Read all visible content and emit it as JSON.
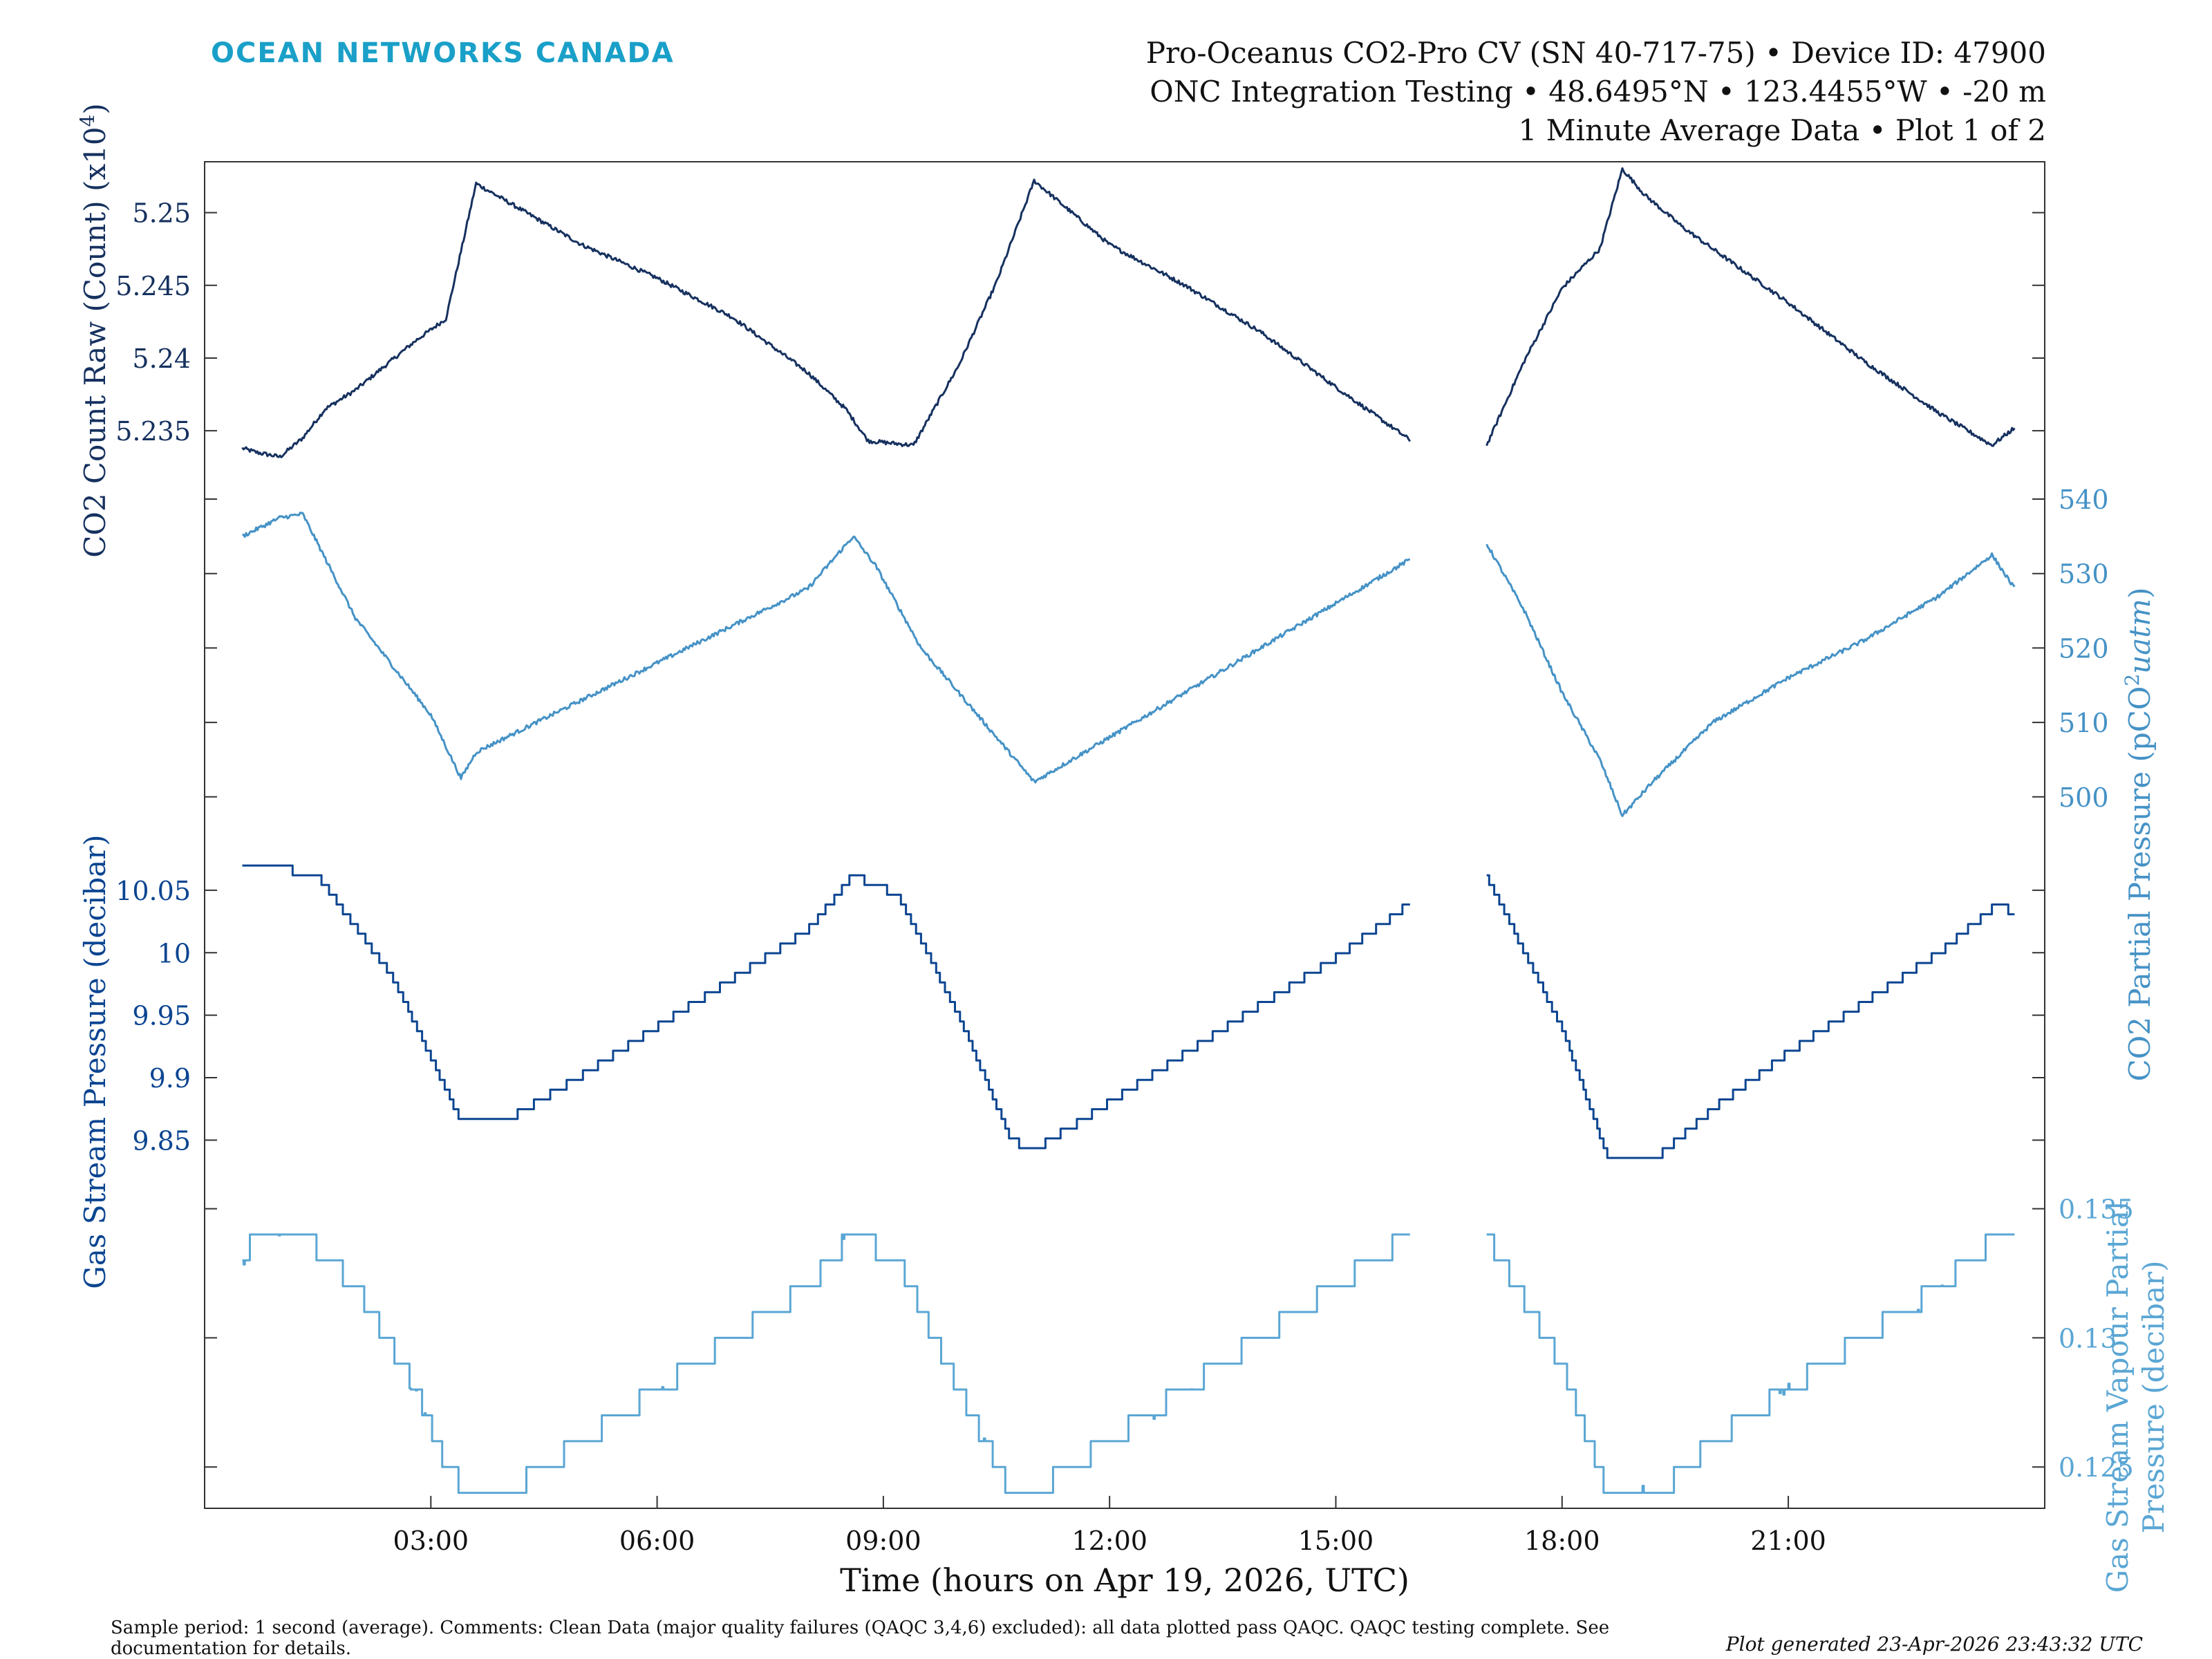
{
  "header": {
    "brand": "OCEAN NETWORKS CANADA",
    "line1": "Pro-Oceanus CO2-Pro CV (SN 40-717-75) • Device ID: 47900",
    "line2": "ONC Integration Testing • 48.6495°N • 123.4455°W • -20 m",
    "line3": "1 Minute Average Data • Plot 1 of 2"
  },
  "footer": {
    "comments": "Sample period: 1 second (average). Comments: Clean Data (major quality failures (QAQC 3,4,6) excluded): all data plotted pass QAQC. QAQC testing complete. See documentation for details.",
    "generated": "Plot generated 23-Apr-2026 23:43:32 UTC"
  },
  "colors": {
    "dark": "#16315f",
    "mid": "#4592c6",
    "navy": "#0b4591",
    "light": "#5aa6d4",
    "axis": "#333333"
  },
  "chart_data": [
    {
      "type": "line",
      "title": "CO2 Count Raw",
      "ylabel": "CO2 Count Raw (Count) (x10^4)",
      "ylabel_main": "CO2 Count Raw (Count) (x10",
      "ylabel_exp": "4",
      "ylabel_tail": ")",
      "axis_side": "left",
      "color": "#16315f",
      "ylim": [
        5.2303,
        5.2535
      ],
      "yticks": [
        5.235,
        5.24,
        5.245,
        5.25
      ],
      "yticklabels": [
        "5.235",
        "5.24",
        "5.245",
        "5.25"
      ],
      "x_hours": [
        0.5,
        0.7,
        1.0,
        1.3,
        1.6,
        2.0,
        2.4,
        2.8,
        3.2,
        3.6,
        4.0,
        5.0,
        6.0,
        7.0,
        8.0,
        8.5,
        8.8,
        9.4,
        10.0,
        10.5,
        11.0,
        11.5,
        12.0,
        13.0,
        14.0,
        15.0,
        16.0,
        16.5,
        17.0,
        17.5,
        18.0,
        18.5,
        18.8,
        19.1,
        19.6,
        20.0,
        21.0,
        22.0,
        23.0,
        23.7,
        24.0
      ],
      "values": [
        5.2338,
        5.2335,
        5.2332,
        5.2345,
        5.2365,
        5.2378,
        5.2395,
        5.2412,
        5.2427,
        5.252,
        5.2508,
        5.2478,
        5.2455,
        5.2428,
        5.239,
        5.2365,
        5.2343,
        5.234,
        5.2395,
        5.2452,
        5.2522,
        5.25,
        5.2478,
        5.245,
        5.2418,
        5.238,
        5.2343,
        null,
        5.234,
        5.2398,
        5.2448,
        5.2475,
        5.253,
        5.2512,
        5.249,
        5.2475,
        5.2438,
        5.2398,
        5.2362,
        5.234,
        5.2352
      ]
    },
    {
      "type": "line",
      "title": "CO2 Partial Pressure",
      "ylabel": "CO2 Partial Pressure (pCO2 uatm)",
      "ylabel_main": "CO2 Partial Pressure (pCO",
      "ylabel_sup": "2",
      "ylabel_unit": "uatm",
      "ylabel_tail": ")",
      "axis_side": "right",
      "color": "#4592c6",
      "ylim": [
        494.5,
        540
      ],
      "yticks": [
        500,
        510,
        520,
        530,
        540
      ],
      "yticklabels": [
        "500",
        "510",
        "520",
        "530",
        "540"
      ],
      "x_hours": [
        0.5,
        1.0,
        1.3,
        2.0,
        3.0,
        3.4,
        3.6,
        4.0,
        5.0,
        6.0,
        7.0,
        8.0,
        8.6,
        8.9,
        9.5,
        10.0,
        10.5,
        11.0,
        11.5,
        12.0,
        13.0,
        14.0,
        15.0,
        16.0,
        16.5,
        17.0,
        17.5,
        18.0,
        18.5,
        18.8,
        19.2,
        20.0,
        21.0,
        22.0,
        23.0,
        23.7,
        24.0
      ],
      "values": [
        535.0,
        537.5,
        538.0,
        524.0,
        511.0,
        502.5,
        506.0,
        508.0,
        513.0,
        518.0,
        523.0,
        528.0,
        535.0,
        531.0,
        520.0,
        514.0,
        508.0,
        502.0,
        505.0,
        508.0,
        514.0,
        520.0,
        526.0,
        532.0,
        null,
        534.0,
        525.0,
        514.0,
        505.0,
        497.5,
        502.0,
        510.0,
        516.0,
        521.0,
        527.0,
        532.5,
        528.0
      ]
    },
    {
      "type": "line",
      "title": "Gas Stream Pressure",
      "ylabel": "Gas Stream Pressure (decibar)",
      "axis_side": "left",
      "color": "#0b4591",
      "ylim": [
        9.822,
        10.092
      ],
      "yticks": [
        9.85,
        9.9,
        9.95,
        10.0,
        10.05
      ],
      "yticklabels": [
        "9.85",
        "9.9",
        "9.95",
        "10",
        "10.05"
      ],
      "x_hours": [
        0.5,
        0.8,
        1.5,
        2.5,
        3.4,
        4.0,
        5.0,
        6.0,
        7.0,
        8.0,
        8.6,
        9.2,
        10.0,
        10.7,
        11.0,
        12.0,
        13.0,
        14.0,
        15.0,
        16.0,
        16.5,
        17.0,
        18.0,
        18.6,
        19.3,
        20.0,
        21.0,
        22.0,
        23.0,
        23.8,
        24.0
      ],
      "values": [
        10.066,
        10.07,
        10.062,
        9.98,
        9.866,
        9.866,
        9.902,
        9.941,
        9.979,
        10.018,
        10.062,
        10.046,
        9.95,
        9.85,
        9.842,
        9.88,
        9.919,
        9.958,
        9.996,
        10.04,
        null,
        10.062,
        9.94,
        9.838,
        9.838,
        9.875,
        9.92,
        9.96,
        10.0,
        10.04,
        10.03
      ]
    },
    {
      "type": "line",
      "title": "Gas Stream Vapour Partial Pressure",
      "ylabel": "Gas Stream Vapour Partial Pressure (decibar)",
      "ylabel_line1": "Gas Stream Vapour Partial",
      "ylabel_line2": "Pressure (decibar)",
      "axis_side": "right",
      "color": "#5aa6d4",
      "ylim": [
        0.1234,
        0.1363
      ],
      "yticks": [
        0.125,
        0.13,
        0.135
      ],
      "yticklabels": [
        "0.125",
        "0.13",
        "0.135"
      ],
      "x_hours": [
        0.5,
        0.7,
        1.3,
        2.0,
        2.8,
        3.2,
        3.5,
        4.0,
        5.0,
        6.0,
        7.0,
        8.0,
        8.6,
        9.2,
        10.0,
        10.7,
        11.0,
        12.0,
        13.0,
        14.0,
        15.0,
        16.0,
        16.5,
        17.0,
        18.0,
        18.6,
        19.3,
        20.0,
        21.0,
        22.0,
        23.0,
        23.8,
        24.0
      ],
      "values": [
        0.133,
        0.134,
        0.134,
        0.132,
        0.128,
        0.125,
        0.124,
        0.124,
        0.126,
        0.128,
        0.13,
        0.132,
        0.134,
        0.133,
        0.128,
        0.124,
        0.124,
        0.126,
        0.128,
        0.13,
        0.132,
        0.134,
        null,
        0.134,
        0.129,
        0.124,
        0.124,
        0.126,
        0.128,
        0.13,
        0.132,
        0.134,
        0.134
      ]
    }
  ],
  "x_axis": {
    "label": "Time (hours on Apr 19, 2026, UTC)",
    "xlim_hours": [
      0,
      24.4
    ],
    "ticks_hours": [
      3,
      6,
      9,
      12,
      15,
      18,
      21
    ],
    "tick_labels": [
      "03:00",
      "06:00",
      "09:00",
      "12:00",
      "15:00",
      "18:00",
      "21:00"
    ]
  }
}
